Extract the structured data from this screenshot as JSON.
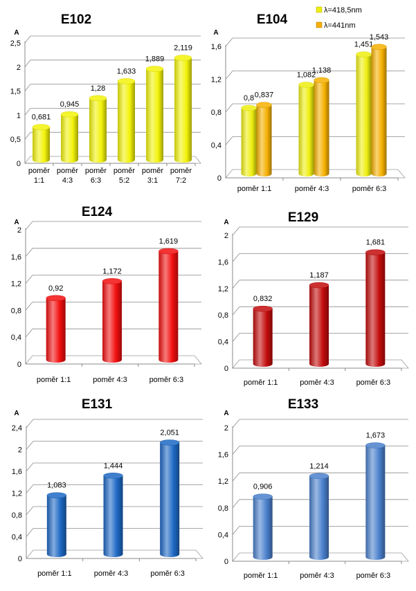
{
  "chart_data": [
    {
      "type": "bar",
      "title": "E102",
      "ylabel": "A",
      "ylim": [
        0,
        2.5
      ],
      "yticks": [
        "0",
        "0,5",
        "1",
        "1,5",
        "2",
        "2,5"
      ],
      "categories": [
        "poměr 1:1",
        "poměr 4:3",
        "poměr 6:3",
        "poměr 5:2",
        "poměr 3:1",
        "poměr 7:2"
      ],
      "series": [
        {
          "values": [
            0.681,
            0.945,
            1.28,
            1.633,
            1.889,
            2.119
          ],
          "labels": [
            "0,681",
            "0,945",
            "1,28",
            "1,633",
            "1,889",
            "2,119"
          ],
          "color": "#f2f20a"
        }
      ]
    },
    {
      "type": "bar",
      "title": "E104",
      "ylabel": "A",
      "ylim": [
        0,
        1.6
      ],
      "yticks": [
        "0",
        "0,4",
        "0,8",
        "1,2",
        "1,6"
      ],
      "categories": [
        "poměr 1:1",
        "poměr 4:3",
        "poměr 6:3"
      ],
      "legend": "top",
      "series": [
        {
          "name": "λ=418,5nm",
          "values": [
            0.8,
            1.082,
            1.451
          ],
          "labels": [
            "0,8",
            "1,082",
            "1,451"
          ],
          "color": "#eeee10"
        },
        {
          "name": "λ=441nm",
          "values": [
            0.837,
            1.138,
            1.543
          ],
          "labels": [
            "0,837",
            "1,138",
            "1,543"
          ],
          "color": "#f5b000"
        }
      ]
    },
    {
      "type": "bar",
      "title": "E124",
      "ylabel": "A",
      "ylim": [
        0,
        2
      ],
      "yticks": [
        "0",
        "0,4",
        "0,8",
        "1,2",
        "1,6",
        "2"
      ],
      "categories": [
        "poměr 1:1",
        "poměr 4:3",
        "poměr 6:3"
      ],
      "series": [
        {
          "values": [
            0.92,
            1.172,
            1.619
          ],
          "labels": [
            "0,92",
            "1,172",
            "1,619"
          ],
          "color": "#f20f0f"
        }
      ]
    },
    {
      "type": "bar",
      "title": "E129",
      "ylabel": "A",
      "ylim": [
        0,
        2
      ],
      "yticks": [
        "0",
        "0,4",
        "0,8",
        "1,2",
        "1,6",
        "2"
      ],
      "categories": [
        "poměr 1:1",
        "poměr 4:3",
        "poměr 6:3"
      ],
      "series": [
        {
          "values": [
            0.832,
            1.187,
            1.681
          ],
          "labels": [
            "0,832",
            "1,187",
            "1,681"
          ],
          "color": "#c30c0c"
        }
      ]
    },
    {
      "type": "bar",
      "title": "E131",
      "ylabel": "A",
      "ylim": [
        0,
        2.4
      ],
      "yticks": [
        "0",
        "0,4",
        "0,8",
        "1,2",
        "1,6",
        "2",
        "2,4"
      ],
      "categories": [
        "poměr 1:1",
        "poměr 4:3",
        "poměr 6:3"
      ],
      "series": [
        {
          "values": [
            1.083,
            1.444,
            2.051
          ],
          "labels": [
            "1,083",
            "1,444",
            "2,051"
          ],
          "color": "#1d68c4"
        }
      ]
    },
    {
      "type": "bar",
      "title": "E133",
      "ylabel": "A",
      "ylim": [
        0,
        2
      ],
      "yticks": [
        "0",
        "0,4",
        "0,8",
        "1,2",
        "1,6",
        "2"
      ],
      "categories": [
        "poměr 1:1",
        "poměr 4:3",
        "poměr 6:3"
      ],
      "series": [
        {
          "values": [
            0.906,
            1.214,
            1.673
          ],
          "labels": [
            "0,906",
            "1,214",
            "1,673"
          ],
          "color": "#4a80cc"
        }
      ]
    }
  ]
}
